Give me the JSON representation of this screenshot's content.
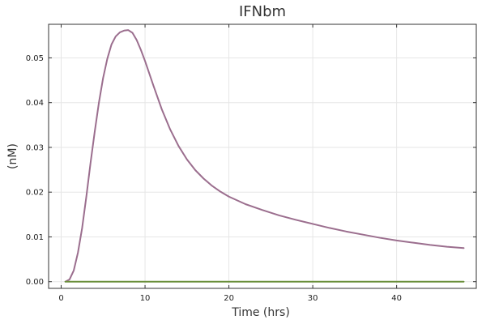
{
  "chart_data": {
    "type": "line",
    "title": "IFNbm",
    "xlabel": "Time (hrs)",
    "ylabel": "(nM)",
    "xlim": [
      -1.5,
      49.5
    ],
    "ylim": [
      -0.0015,
      0.0575
    ],
    "x_ticks": [
      0,
      10,
      20,
      30,
      40
    ],
    "x_tick_labels": [
      "0",
      "10",
      "20",
      "30",
      "40"
    ],
    "y_ticks": [
      0,
      0.01,
      0.02,
      0.03,
      0.04,
      0.05
    ],
    "y_tick_labels": [
      "0.00",
      "0.01",
      "0.02",
      "0.03",
      "0.04",
      "0.05"
    ],
    "grid": true,
    "legend": "none",
    "series": [
      {
        "color": "#9b6e8e",
        "x": [
          0.5,
          1,
          1.5,
          2,
          2.5,
          3,
          3.5,
          4,
          4.5,
          5,
          5.5,
          6,
          6.5,
          7,
          7.5,
          8,
          8.5,
          9,
          9.5,
          10,
          11,
          12,
          13,
          14,
          15,
          16,
          17,
          18,
          19,
          20,
          22,
          24,
          26,
          28,
          30,
          32,
          34,
          36,
          38,
          40,
          42,
          44,
          46,
          48
        ],
        "values": [
          0.0,
          0.0005,
          0.0025,
          0.0065,
          0.012,
          0.019,
          0.0265,
          0.0335,
          0.04,
          0.0455,
          0.0498,
          0.053,
          0.0548,
          0.0557,
          0.0561,
          0.0562,
          0.0556,
          0.054,
          0.0518,
          0.0493,
          0.0438,
          0.0385,
          0.034,
          0.0303,
          0.0273,
          0.0249,
          0.023,
          0.0214,
          0.0201,
          0.019,
          0.0173,
          0.016,
          0.0148,
          0.0138,
          0.0129,
          0.012,
          0.0112,
          0.0105,
          0.0098,
          0.0092,
          0.0087,
          0.0082,
          0.0078,
          0.0075
        ]
      },
      {
        "color": "#6a8f3a",
        "x": [
          0.5,
          48
        ],
        "values": [
          0.0,
          0.0
        ]
      }
    ]
  }
}
